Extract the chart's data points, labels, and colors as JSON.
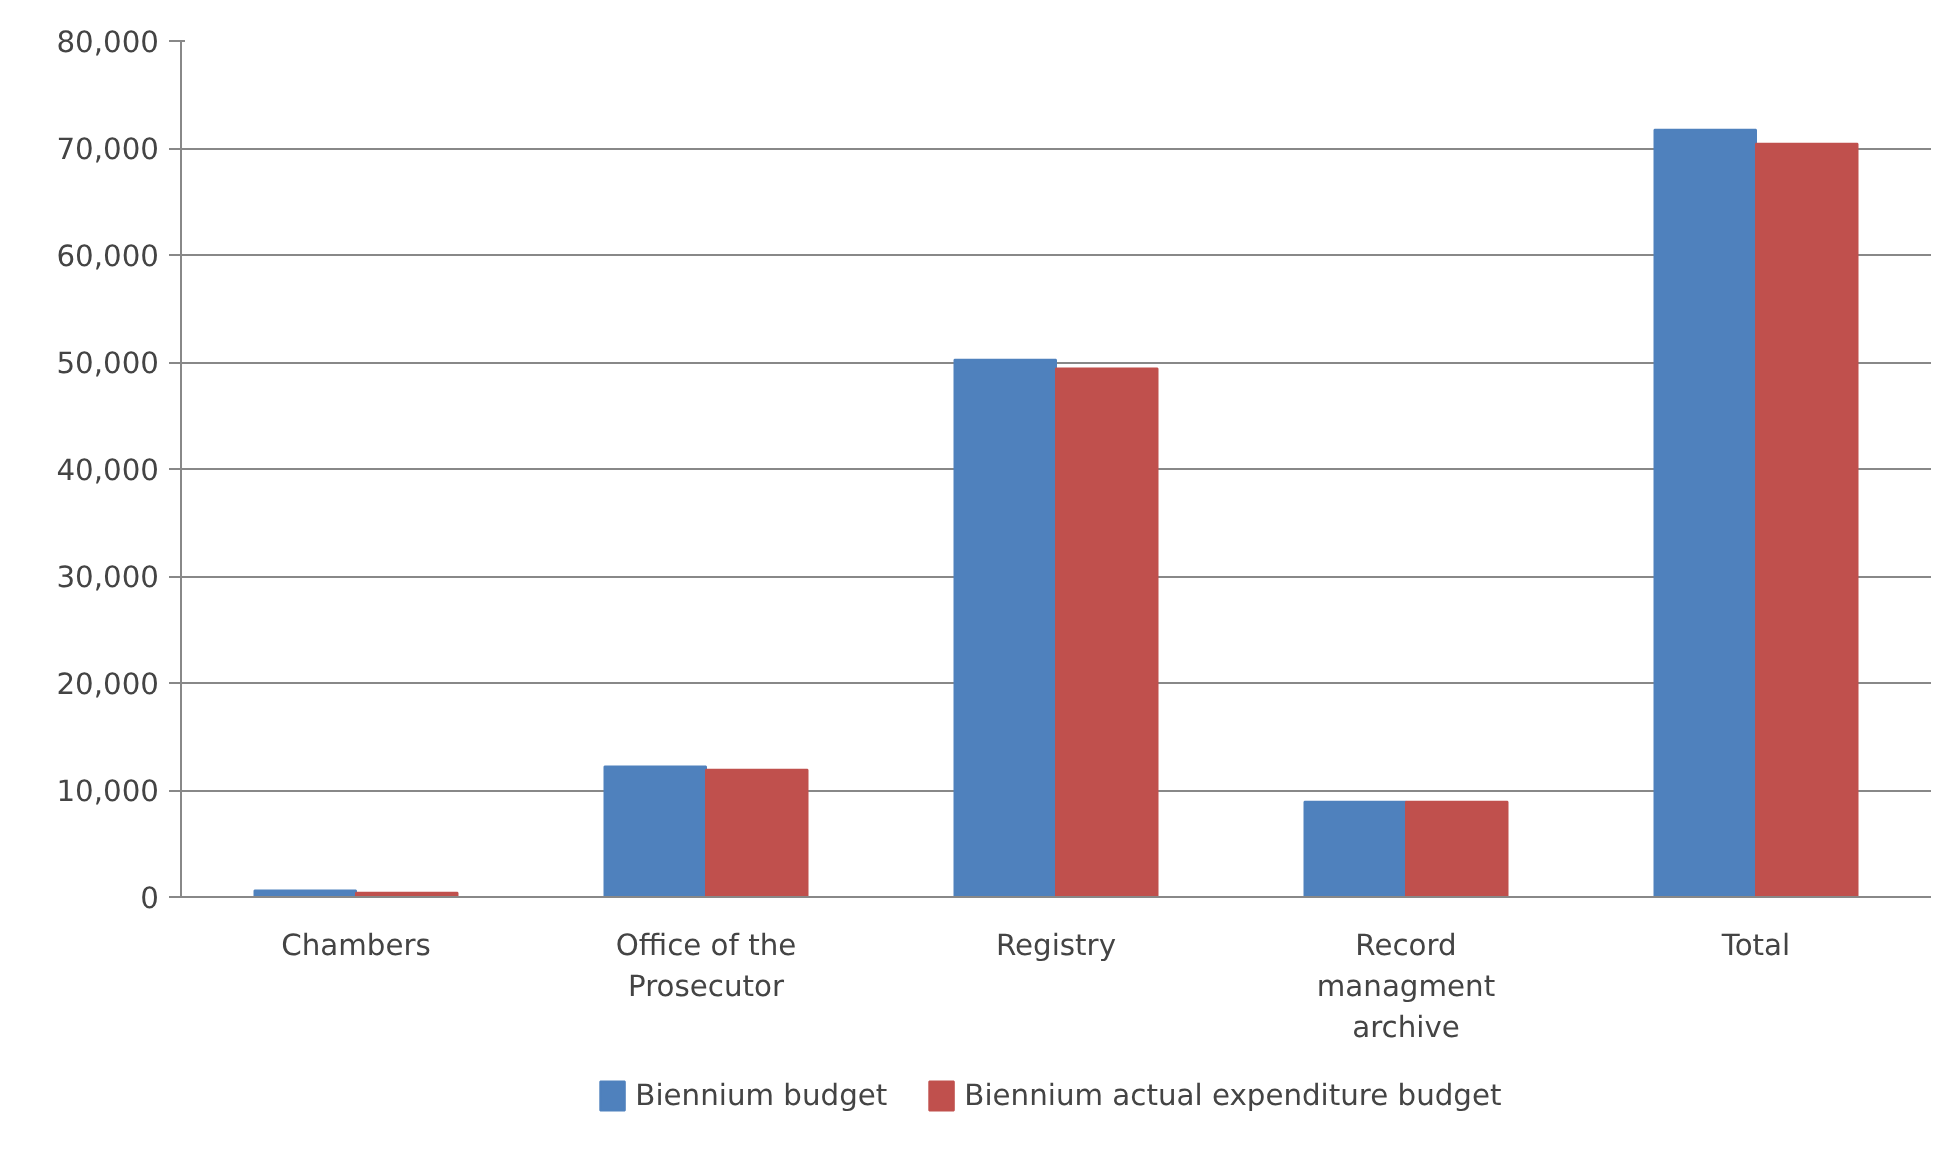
{
  "chart_data": {
    "type": "bar",
    "categories": [
      "Chambers",
      "Office of the Prosecutor",
      "Registry",
      "Record managment archive",
      "Total"
    ],
    "series": [
      {
        "name": "Biennium budget",
        "color": "#4f81bd",
        "values": [
          600,
          12200,
          50200,
          8900,
          71700
        ]
      },
      {
        "name": "Biennium actual expenditure budget",
        "color": "#c0504d",
        "values": [
          400,
          11900,
          49400,
          8900,
          70400
        ]
      }
    ],
    "ylim": [
      0,
      80000
    ],
    "yticks": [
      {
        "value": 0,
        "label": "0"
      },
      {
        "value": 10000,
        "label": "10,000"
      },
      {
        "value": 20000,
        "label": "20,000"
      },
      {
        "value": 30000,
        "label": "30,000"
      },
      {
        "value": 40000,
        "label": "40,000"
      },
      {
        "value": 50000,
        "label": "50,000"
      },
      {
        "value": 60000,
        "label": "60,000"
      },
      {
        "value": 70000,
        "label": "70,000"
      },
      {
        "value": 80000,
        "label": "80,000"
      }
    ],
    "grid": "y",
    "legend": "bottom"
  }
}
